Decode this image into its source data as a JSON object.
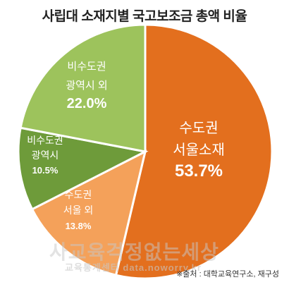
{
  "chart_data": {
    "type": "pie",
    "title": "사립대 소재지별 국고보조금 총액 비율",
    "slices": [
      {
        "label_lines": [
          "수도권",
          "서울소재"
        ],
        "value": 53.7,
        "value_label": "53.7%",
        "color": "#E36F1E"
      },
      {
        "label_lines": [
          "수도권",
          "서울 외"
        ],
        "value": 13.8,
        "value_label": "13.8%",
        "color": "#F4A15A"
      },
      {
        "label_lines": [
          "비수도권",
          "광역시"
        ],
        "value": 10.5,
        "value_label": "10.5%",
        "color": "#6E9B3A"
      },
      {
        "label_lines": [
          "비수도권",
          "광역시 외"
        ],
        "value": 22.0,
        "value_label": "22.0%",
        "color": "#9DC35C"
      }
    ]
  },
  "watermark": {
    "main": "사교육걱정없는세상",
    "sub": "교육통계센터 data.noworry.kr"
  },
  "source": "※출처 : 대학교육연구소, 재구성"
}
